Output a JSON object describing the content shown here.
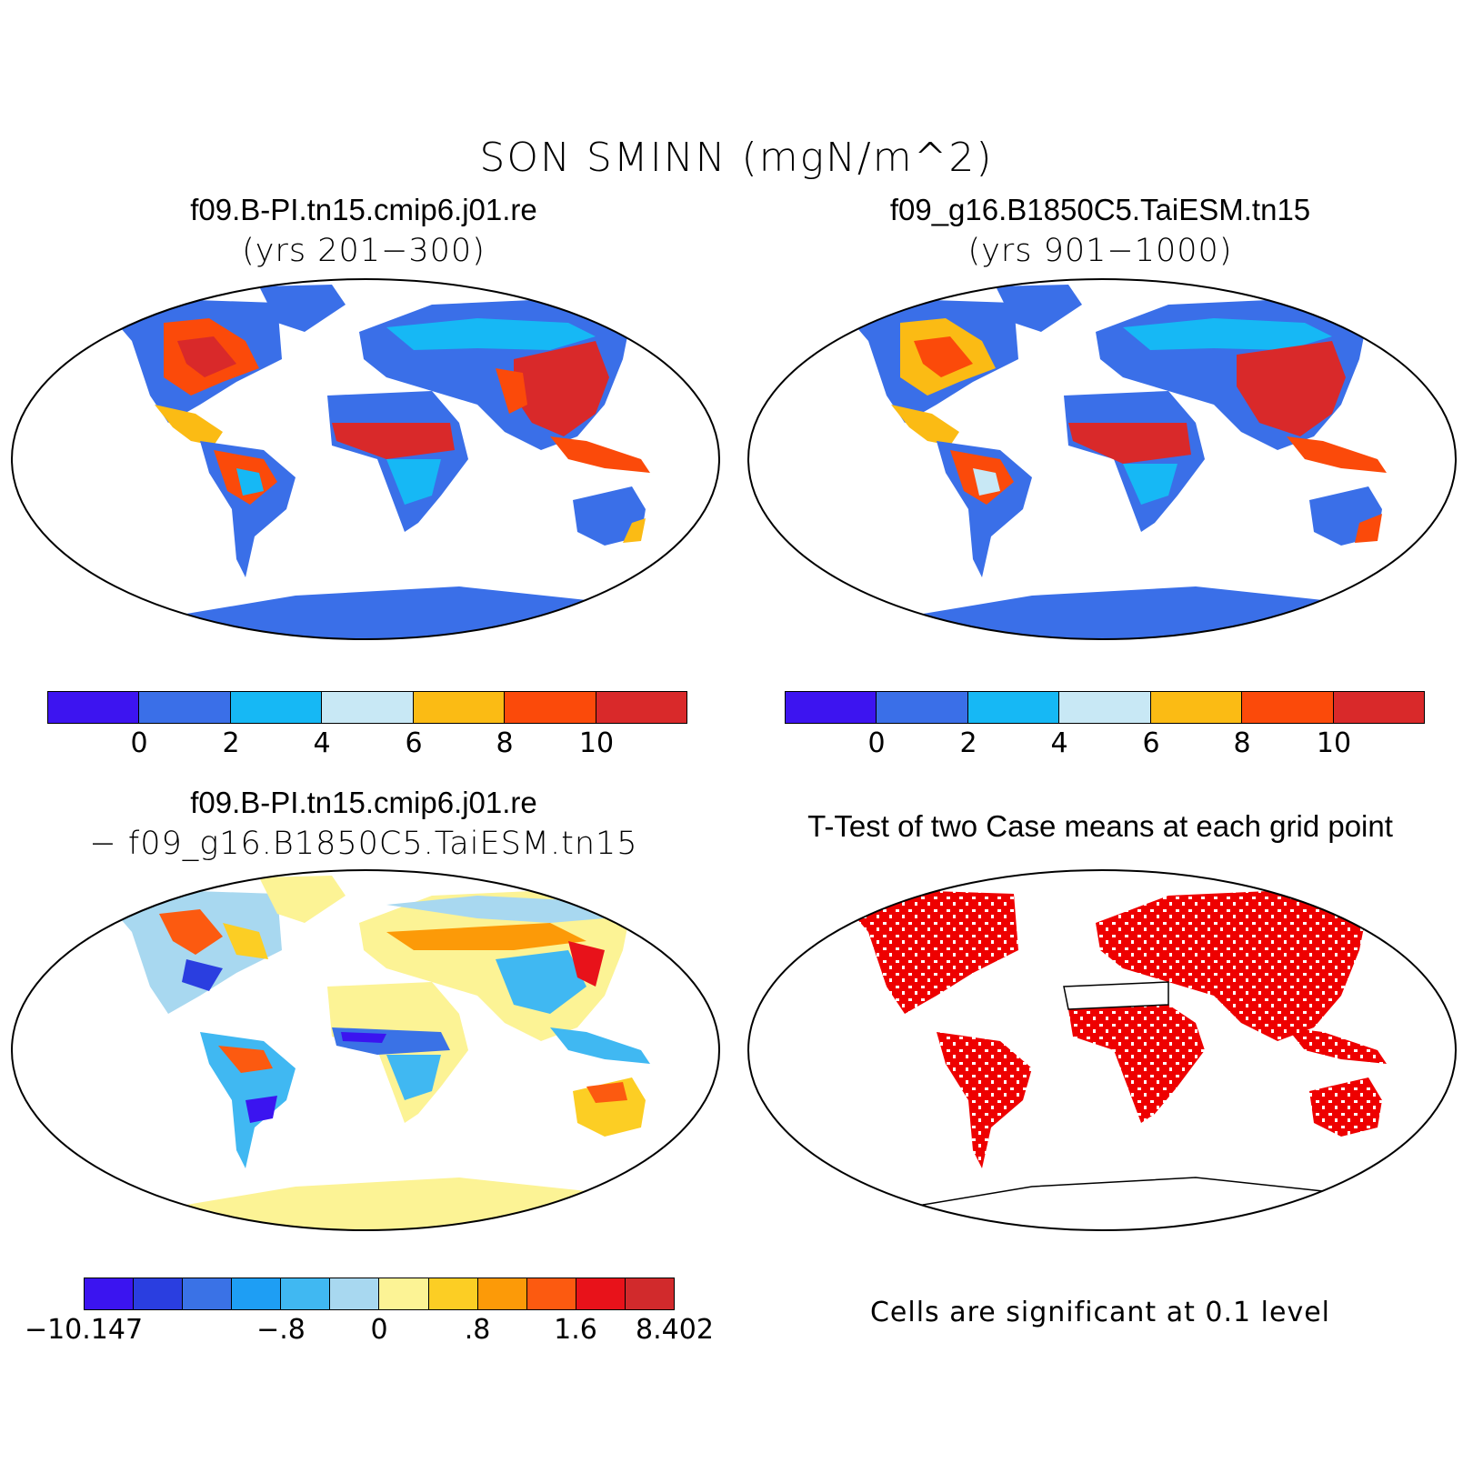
{
  "figure": {
    "title": "SON SMINN (mgN/m^2)"
  },
  "panels": {
    "top_left": {
      "case": "f09.B-PI.tn15.cmip6.j01.re",
      "years": "(yrs 201−300)"
    },
    "top_right": {
      "case": "f09_g16.B1850C5.TaiESM.tn15",
      "years": "(yrs 901−1000)"
    },
    "bottom_left": {
      "case": "f09.B-PI.tn15.cmip6.j01.re",
      "minus": "− f09_g16.B1850C5.TaiESM.tn15"
    },
    "bottom_right": {
      "title": "T-Test of two Case means at each grid point",
      "note": "Cells are significant at 0.1 level"
    }
  },
  "colorbars": {
    "absolute": {
      "colors": [
        "#3d14f0",
        "#3a6fe8",
        "#16b8f5",
        "#c8e8f5",
        "#fbbb14",
        "#fb4a0a",
        "#d9292a"
      ],
      "labels": [
        "0",
        "2",
        "4",
        "6",
        "8",
        "10"
      ]
    },
    "difference": {
      "colors": [
        "#3b14f0",
        "#2a3ee0",
        "#3a72e6",
        "#1e9ef4",
        "#40b8f2",
        "#a8d8f0",
        "#fcf395",
        "#fcce24",
        "#fc9a08",
        "#fc5a10",
        "#e8121a",
        "#d12a2c"
      ],
      "labels": [
        "−10.147",
        "−.8",
        "0",
        ".8",
        "1.6",
        "8.402"
      ]
    }
  },
  "legend_colors": {
    "significant": "#ee0000",
    "land_background_diff": "#fcf395"
  }
}
